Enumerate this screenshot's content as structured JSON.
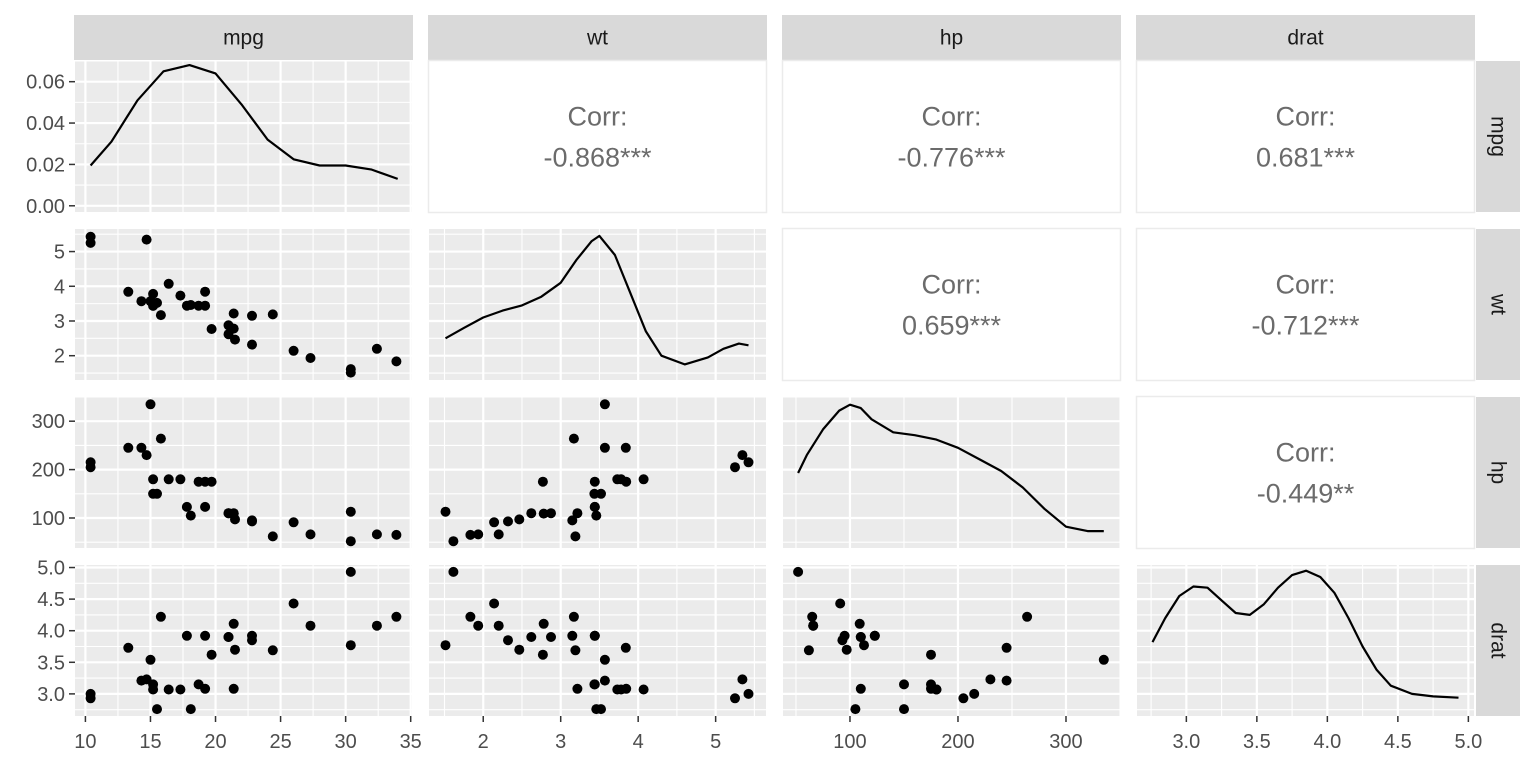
{
  "chart_data": {
    "type": "scatter",
    "title": "",
    "variables": [
      "mpg",
      "wt",
      "hp",
      "drat"
    ],
    "colors": {
      "panel_bg": "#ebebeb",
      "grid_major": "#ffffff",
      "strip_bg": "#d9d9d9",
      "corr_panel_border": "#ebebeb",
      "corr_text": "#6b6b6b",
      "point": "#000000",
      "axis_text": "#4d4d4d"
    },
    "grid": true,
    "x_axes": [
      {
        "var": "mpg",
        "range": [
          9.2,
          35.1
        ],
        "ticks": [
          10,
          15,
          20,
          25,
          30,
          35
        ]
      },
      {
        "var": "wt",
        "range": [
          1.3,
          5.65
        ],
        "ticks": [
          2,
          3,
          4,
          5
        ]
      },
      {
        "var": "hp",
        "range": [
          38,
          350
        ],
        "ticks": [
          100,
          200,
          300
        ]
      },
      {
        "var": "drat",
        "range": [
          2.65,
          5.04
        ],
        "ticks": [
          3.0,
          3.5,
          4.0,
          4.5,
          5.0
        ],
        "tick_labels": [
          "3.0",
          "3.5",
          "4.0",
          "4.5",
          "5.0"
        ]
      }
    ],
    "y_axes": [
      {
        "var": "mpg",
        "range": [
          -0.003,
          0.07
        ],
        "ticks": [
          0,
          0.02,
          0.04,
          0.06
        ],
        "tick_labels": [
          "0.00",
          "0.02",
          "0.04",
          "0.06"
        ]
      },
      {
        "var": "wt",
        "range": [
          1.3,
          5.65
        ],
        "ticks": [
          2,
          3,
          4,
          5
        ]
      },
      {
        "var": "hp",
        "range": [
          38,
          350
        ],
        "ticks": [
          100,
          200,
          300
        ]
      },
      {
        "var": "drat",
        "range": [
          2.65,
          5.04
        ],
        "ticks": [
          3.0,
          3.5,
          4.0,
          4.5,
          5.0
        ],
        "tick_labels": [
          "3.0",
          "3.5",
          "4.0",
          "4.5",
          "5.0"
        ]
      }
    ],
    "correlations": [
      {
        "row": "mpg",
        "col": "wt",
        "label": "Corr:",
        "value": "-0.868***"
      },
      {
        "row": "mpg",
        "col": "hp",
        "label": "Corr:",
        "value": "-0.776***"
      },
      {
        "row": "mpg",
        "col": "drat",
        "label": "Corr:",
        "value": "0.681***"
      },
      {
        "row": "wt",
        "col": "hp",
        "label": "Corr:",
        "value": "0.659***"
      },
      {
        "row": "wt",
        "col": "drat",
        "label": "Corr:",
        "value": "-0.712***"
      },
      {
        "row": "hp",
        "col": "drat",
        "label": "Corr:",
        "value": "-0.449**"
      }
    ],
    "densities": [
      {
        "var": "mpg",
        "x": [
          10.4,
          12,
          14,
          16,
          18,
          20,
          22,
          24,
          26,
          28,
          30,
          32,
          34
        ],
        "y": [
          0.0195,
          0.031,
          0.051,
          0.065,
          0.068,
          0.064,
          0.049,
          0.032,
          0.0225,
          0.0195,
          0.0195,
          0.0175,
          0.013
        ]
      },
      {
        "var": "wt",
        "x": [
          1.513,
          1.75,
          2.0,
          2.25,
          2.5,
          2.75,
          3.0,
          3.2,
          3.4,
          3.5,
          3.7,
          3.9,
          4.1,
          4.3,
          4.6,
          4.9,
          5.1,
          5.3,
          5.424
        ],
        "y": [
          2.5,
          2.8,
          3.1,
          3.3,
          3.45,
          3.7,
          4.1,
          4.75,
          5.3,
          5.45,
          4.9,
          3.8,
          2.7,
          2.0,
          1.75,
          1.95,
          2.2,
          2.35,
          2.3
        ]
      },
      {
        "var": "hp",
        "x": [
          52,
          60,
          75,
          90,
          100,
          110,
          120,
          140,
          160,
          180,
          200,
          220,
          240,
          260,
          280,
          300,
          320,
          335
        ],
        "y": [
          193,
          230,
          283,
          322,
          334,
          327,
          304,
          277,
          271,
          262,
          245,
          221,
          197,
          163,
          119,
          82,
          73,
          73
        ]
      },
      {
        "var": "drat",
        "x": [
          2.76,
          2.85,
          2.95,
          3.05,
          3.15,
          3.25,
          3.35,
          3.45,
          3.55,
          3.65,
          3.75,
          3.85,
          3.95,
          4.05,
          4.15,
          4.25,
          4.35,
          4.45,
          4.6,
          4.75,
          4.93
        ],
        "y": [
          3.82,
          4.2,
          4.55,
          4.7,
          4.68,
          4.48,
          4.28,
          4.25,
          4.42,
          4.68,
          4.88,
          4.95,
          4.85,
          4.6,
          4.2,
          3.75,
          3.38,
          3.13,
          3.0,
          2.96,
          2.94
        ]
      }
    ],
    "cars": [
      {
        "mpg": 21.0,
        "wt": 2.62,
        "hp": 110,
        "drat": 3.9
      },
      {
        "mpg": 21.0,
        "wt": 2.875,
        "hp": 110,
        "drat": 3.9
      },
      {
        "mpg": 22.8,
        "wt": 2.32,
        "hp": 93,
        "drat": 3.85
      },
      {
        "mpg": 21.4,
        "wt": 3.215,
        "hp": 110,
        "drat": 3.08
      },
      {
        "mpg": 18.7,
        "wt": 3.44,
        "hp": 175,
        "drat": 3.15
      },
      {
        "mpg": 18.1,
        "wt": 3.46,
        "hp": 105,
        "drat": 2.76
      },
      {
        "mpg": 14.3,
        "wt": 3.57,
        "hp": 245,
        "drat": 3.21
      },
      {
        "mpg": 24.4,
        "wt": 3.19,
        "hp": 62,
        "drat": 3.69
      },
      {
        "mpg": 22.8,
        "wt": 3.15,
        "hp": 95,
        "drat": 3.92
      },
      {
        "mpg": 19.2,
        "wt": 3.44,
        "hp": 123,
        "drat": 3.92
      },
      {
        "mpg": 17.8,
        "wt": 3.44,
        "hp": 123,
        "drat": 3.92
      },
      {
        "mpg": 16.4,
        "wt": 4.07,
        "hp": 180,
        "drat": 3.07
      },
      {
        "mpg": 17.3,
        "wt": 3.73,
        "hp": 180,
        "drat": 3.07
      },
      {
        "mpg": 15.2,
        "wt": 3.78,
        "hp": 180,
        "drat": 3.07
      },
      {
        "mpg": 10.4,
        "wt": 5.25,
        "hp": 205,
        "drat": 2.93
      },
      {
        "mpg": 10.4,
        "wt": 5.424,
        "hp": 215,
        "drat": 3.0
      },
      {
        "mpg": 14.7,
        "wt": 5.345,
        "hp": 230,
        "drat": 3.23
      },
      {
        "mpg": 32.4,
        "wt": 2.2,
        "hp": 66,
        "drat": 4.08
      },
      {
        "mpg": 30.4,
        "wt": 1.615,
        "hp": 52,
        "drat": 4.93
      },
      {
        "mpg": 33.9,
        "wt": 1.835,
        "hp": 65,
        "drat": 4.22
      },
      {
        "mpg": 21.5,
        "wt": 2.465,
        "hp": 97,
        "drat": 3.7
      },
      {
        "mpg": 15.5,
        "wt": 3.52,
        "hp": 150,
        "drat": 2.76
      },
      {
        "mpg": 15.2,
        "wt": 3.435,
        "hp": 150,
        "drat": 3.15
      },
      {
        "mpg": 13.3,
        "wt": 3.84,
        "hp": 245,
        "drat": 3.73
      },
      {
        "mpg": 19.2,
        "wt": 3.845,
        "hp": 175,
        "drat": 3.08
      },
      {
        "mpg": 27.3,
        "wt": 1.935,
        "hp": 66,
        "drat": 4.08
      },
      {
        "mpg": 26.0,
        "wt": 2.14,
        "hp": 91,
        "drat": 4.43
      },
      {
        "mpg": 30.4,
        "wt": 1.513,
        "hp": 113,
        "drat": 3.77
      },
      {
        "mpg": 15.8,
        "wt": 3.17,
        "hp": 264,
        "drat": 4.22
      },
      {
        "mpg": 19.7,
        "wt": 2.77,
        "hp": 175,
        "drat": 3.62
      },
      {
        "mpg": 15.0,
        "wt": 3.57,
        "hp": 335,
        "drat": 3.54
      },
      {
        "mpg": 21.4,
        "wt": 2.78,
        "hp": 109,
        "drat": 4.11
      }
    ]
  }
}
